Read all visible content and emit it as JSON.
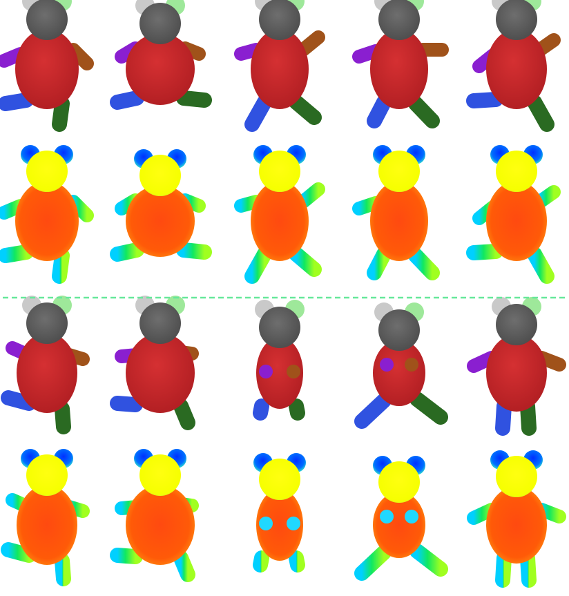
{
  "figure": {
    "sections": [
      {
        "name": "top",
        "segmentation_row": [
          {
            "pose": "front-left-kick"
          },
          {
            "pose": "sitting-wide"
          },
          {
            "pose": "walking-left"
          },
          {
            "pose": "walking-right"
          },
          {
            "pose": "running"
          }
        ],
        "heatmap_row": [
          {
            "pose": "front-left-kick"
          },
          {
            "pose": "sitting-wide"
          },
          {
            "pose": "walking-left"
          },
          {
            "pose": "walking-right"
          },
          {
            "pose": "running"
          }
        ]
      },
      {
        "name": "bottom",
        "segmentation_row": [
          {
            "pose": "back-kick"
          },
          {
            "pose": "back-sitting"
          },
          {
            "pose": "arms-forward"
          },
          {
            "pose": "arms-forward-split"
          },
          {
            "pose": "t-pose"
          }
        ],
        "heatmap_row": [
          {
            "pose": "back-kick"
          },
          {
            "pose": "back-sitting"
          },
          {
            "pose": "arms-forward"
          },
          {
            "pose": "arms-forward-split"
          },
          {
            "pose": "t-pose"
          }
        ]
      }
    ],
    "separator": {
      "style": "dashed",
      "color": "#66e89a"
    },
    "segment_colors": {
      "head": "#5f5f5f",
      "ear_left": "#c9c9c9",
      "ear_right": "#9ee89a",
      "body": "#c9282a",
      "arm_left": "#8a1fd0",
      "arm_right": "#a0521a",
      "leg_left": "#3052e0",
      "leg_right": "#2a6a22"
    }
  }
}
